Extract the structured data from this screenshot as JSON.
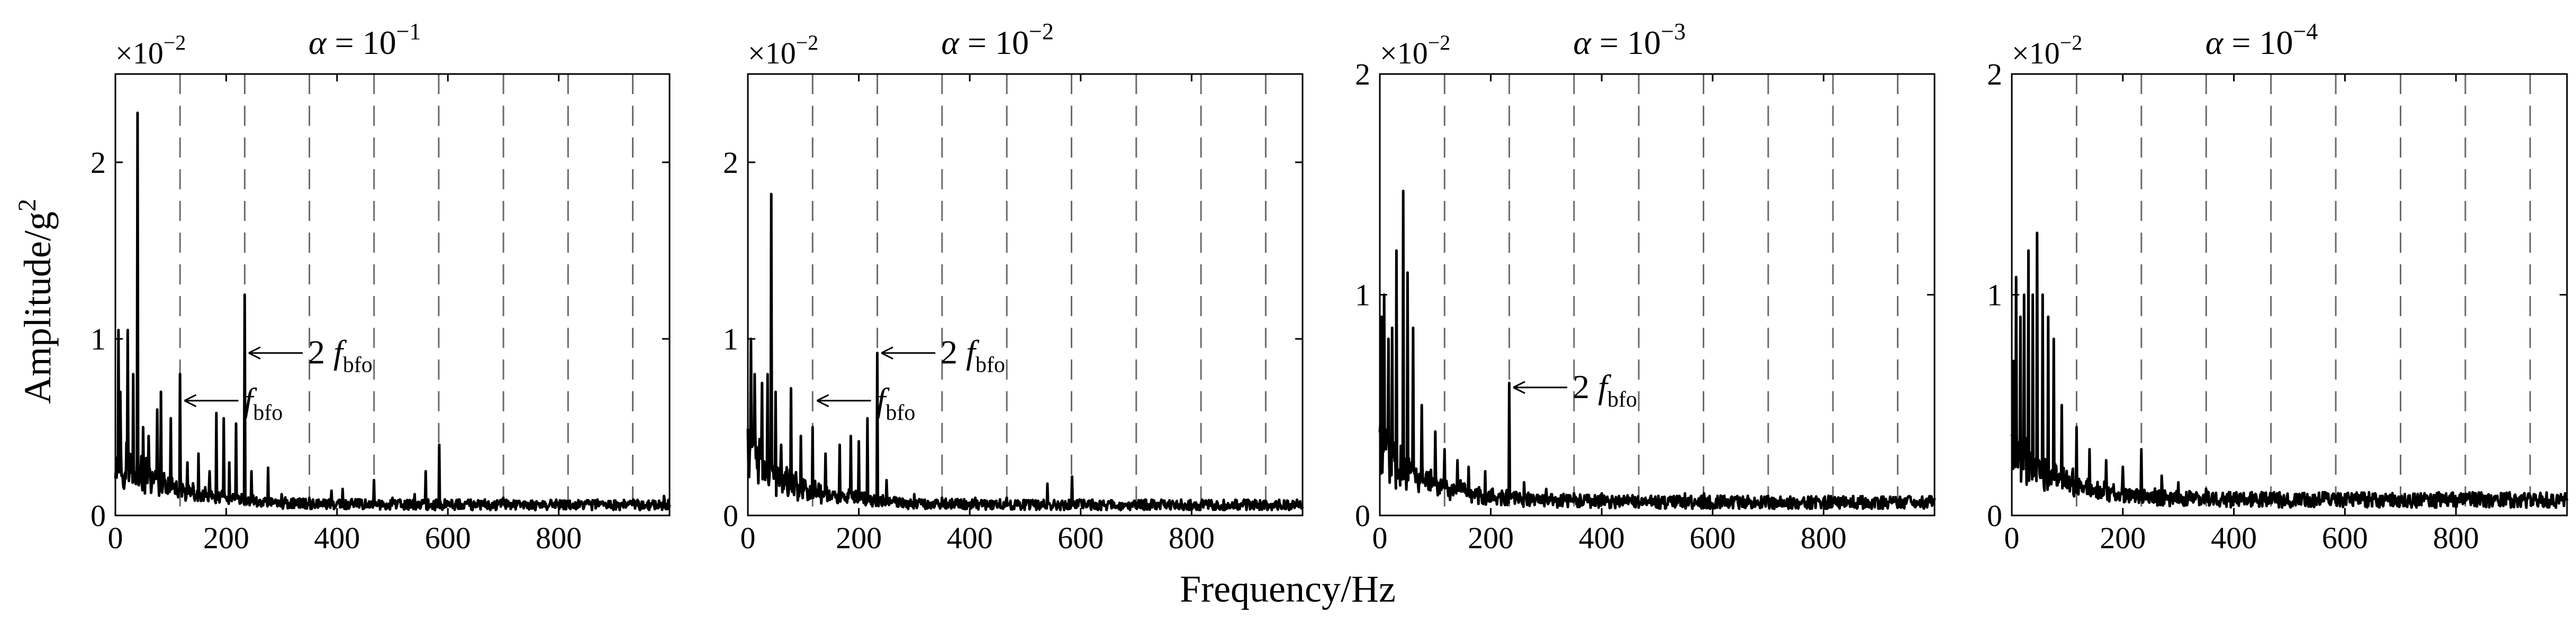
{
  "figure": {
    "ylabel": "Amplitude/g",
    "ylabel_sup": "2",
    "xlabel": "Frequency/Hz"
  },
  "chart_data": [
    {
      "type": "line",
      "title": "α = 10",
      "title_exp": "−1",
      "scale_base": "×10",
      "scale_exp": "−2",
      "xlabel": "Frequency/Hz",
      "ylabel": "Amplitude/g²",
      "xlim": [
        0,
        1000
      ],
      "ylim": [
        0,
        2.5
      ],
      "xticks": [
        0,
        200,
        400,
        600,
        800
      ],
      "yticks": [
        0,
        1,
        2
      ],
      "vlines": [
        116.7,
        233.4,
        350.1,
        466.8,
        583.5,
        700.2,
        816.9,
        933.6
      ],
      "peaks": [
        [
          5,
          1.05
        ],
        [
          9,
          0.7
        ],
        [
          22,
          1.05
        ],
        [
          32,
          0.8
        ],
        [
          40,
          2.28
        ],
        [
          50,
          0.5
        ],
        [
          60,
          0.45
        ],
        [
          75,
          0.6
        ],
        [
          82,
          0.7
        ],
        [
          100,
          0.55
        ],
        [
          117,
          0.8
        ],
        [
          130,
          0.3
        ],
        [
          150,
          0.35
        ],
        [
          170,
          0.25
        ],
        [
          182,
          0.58
        ],
        [
          196,
          0.55
        ],
        [
          205,
          0.3
        ],
        [
          218,
          0.52
        ],
        [
          233,
          1.25
        ],
        [
          245,
          0.25
        ],
        [
          275,
          0.27
        ],
        [
          300,
          0.12
        ],
        [
          350,
          0.1
        ],
        [
          390,
          0.14
        ],
        [
          410,
          0.15
        ],
        [
          467,
          0.2
        ],
        [
          500,
          0.1
        ],
        [
          540,
          0.12
        ],
        [
          560,
          0.25
        ],
        [
          584,
          0.4
        ],
        [
          620,
          0.09
        ],
        [
          700,
          0.1
        ],
        [
          760,
          0.08
        ],
        [
          817,
          0.08
        ],
        [
          870,
          0.09
        ],
        [
          934,
          0.09
        ],
        [
          990,
          0.11
        ]
      ],
      "noise_floor": 0.06,
      "annotations": [
        {
          "label": "f",
          "sub": "bfo",
          "x": 117,
          "y": 0.65
        },
        {
          "label": "2 f",
          "sub": "bfo",
          "x": 233,
          "y": 0.92
        }
      ]
    },
    {
      "type": "line",
      "title": "α = 10",
      "title_exp": "−2",
      "scale_base": "×10",
      "scale_exp": "−2",
      "xlabel": "Frequency/Hz",
      "ylabel": "Amplitude/g²",
      "xlim": [
        0,
        1000
      ],
      "ylim": [
        0,
        2.5
      ],
      "xticks": [
        0,
        200,
        400,
        600,
        800
      ],
      "yticks": [
        0,
        1,
        2
      ],
      "vlines": [
        116.7,
        233.4,
        350.1,
        466.8,
        583.5,
        700.2,
        816.9,
        933.6
      ],
      "peaks": [
        [
          5,
          1.0
        ],
        [
          12,
          0.8
        ],
        [
          25,
          0.75
        ],
        [
          35,
          0.8
        ],
        [
          42,
          1.82
        ],
        [
          50,
          0.7
        ],
        [
          60,
          0.4
        ],
        [
          78,
          0.72
        ],
        [
          95,
          0.45
        ],
        [
          117,
          0.5
        ],
        [
          140,
          0.35
        ],
        [
          165,
          0.4
        ],
        [
          185,
          0.45
        ],
        [
          200,
          0.42
        ],
        [
          215,
          0.55
        ],
        [
          233,
          0.92
        ],
        [
          250,
          0.2
        ],
        [
          300,
          0.12
        ],
        [
          350,
          0.1
        ],
        [
          410,
          0.1
        ],
        [
          467,
          0.1
        ],
        [
          540,
          0.18
        ],
        [
          584,
          0.22
        ],
        [
          650,
          0.08
        ],
        [
          700,
          0.07
        ],
        [
          817,
          0.07
        ],
        [
          934,
          0.08
        ],
        [
          990,
          0.08
        ]
      ],
      "noise_floor": 0.06,
      "annotations": [
        {
          "label": "f",
          "sub": "bfo",
          "x": 117,
          "y": 0.65
        },
        {
          "label": "2 f",
          "sub": "bfo",
          "x": 233,
          "y": 0.92
        }
      ]
    },
    {
      "type": "line",
      "title": "α = 10",
      "title_exp": "−3",
      "scale_base": "×10",
      "scale_exp": "−2",
      "xlabel": "Frequency/Hz",
      "ylabel": "Amplitude/g²",
      "xlim": [
        0,
        1000
      ],
      "ylim": [
        0,
        2.0
      ],
      "xticks": [
        0,
        200,
        400,
        600,
        800
      ],
      "yticks": [
        0,
        1,
        2
      ],
      "vlines": [
        116.7,
        233.4,
        350.1,
        466.8,
        583.5,
        700.2,
        816.9,
        933.6
      ],
      "peaks": [
        [
          3,
          0.9
        ],
        [
          8,
          1.0
        ],
        [
          15,
          0.8
        ],
        [
          22,
          0.85
        ],
        [
          30,
          1.2
        ],
        [
          42,
          1.47
        ],
        [
          50,
          1.1
        ],
        [
          60,
          0.85
        ],
        [
          75,
          0.5
        ],
        [
          100,
          0.38
        ],
        [
          117,
          0.3
        ],
        [
          140,
          0.25
        ],
        [
          160,
          0.22
        ],
        [
          190,
          0.2
        ],
        [
          233,
          0.6
        ],
        [
          260,
          0.15
        ],
        [
          300,
          0.12
        ],
        [
          350,
          0.1
        ],
        [
          400,
          0.1
        ],
        [
          450,
          0.08
        ],
        [
          550,
          0.1
        ],
        [
          584,
          0.1
        ],
        [
          650,
          0.07
        ],
        [
          700,
          0.07
        ],
        [
          817,
          0.06
        ],
        [
          934,
          0.07
        ],
        [
          990,
          0.08
        ]
      ],
      "noise_floor": 0.06,
      "annotations": [
        {
          "label": "2 f",
          "sub": "bfo",
          "x": 233,
          "y": 0.58
        }
      ]
    },
    {
      "type": "line",
      "title": "α = 10",
      "title_exp": "−4",
      "scale_base": "×10",
      "scale_exp": "−2",
      "xlabel": "Frequency/Hz",
      "ylabel": "Amplitude/g²",
      "xlim": [
        0,
        1000
      ],
      "ylim": [
        0,
        2.0
      ],
      "xticks": [
        0,
        200,
        400,
        600,
        800
      ],
      "yticks": [
        0,
        1,
        2
      ],
      "vlines": [
        116.7,
        233.4,
        350.1,
        466.8,
        583.5,
        700.2,
        816.9,
        933.6
      ],
      "peaks": [
        [
          3,
          0.7
        ],
        [
          8,
          1.08
        ],
        [
          15,
          0.9
        ],
        [
          22,
          1.0
        ],
        [
          30,
          1.2
        ],
        [
          38,
          1.0
        ],
        [
          45,
          1.28
        ],
        [
          55,
          1.0
        ],
        [
          65,
          0.9
        ],
        [
          75,
          0.8
        ],
        [
          90,
          0.5
        ],
        [
          117,
          0.4
        ],
        [
          140,
          0.3
        ],
        [
          170,
          0.25
        ],
        [
          200,
          0.22
        ],
        [
          233,
          0.3
        ],
        [
          270,
          0.18
        ],
        [
          300,
          0.15
        ],
        [
          350,
          0.12
        ],
        [
          400,
          0.1
        ],
        [
          470,
          0.1
        ],
        [
          530,
          0.08
        ],
        [
          584,
          0.08
        ],
        [
          650,
          0.07
        ],
        [
          700,
          0.07
        ],
        [
          817,
          0.06
        ],
        [
          934,
          0.08
        ],
        [
          990,
          0.07
        ]
      ],
      "noise_floor": 0.07,
      "annotations": []
    }
  ]
}
